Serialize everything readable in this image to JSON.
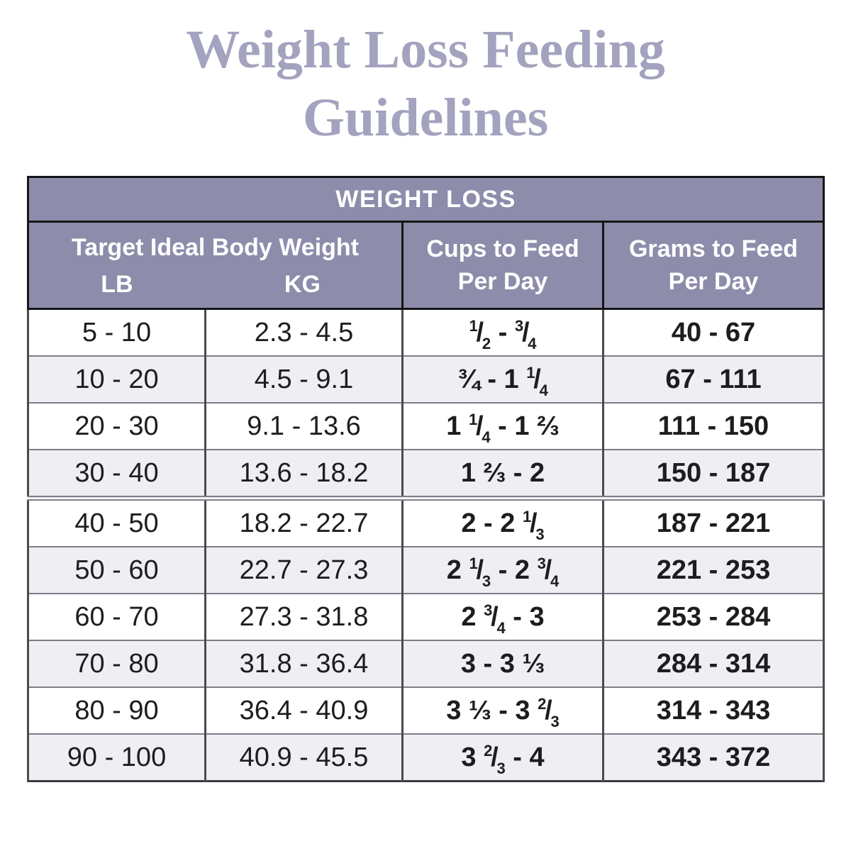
{
  "page": {
    "title_lines": [
      "Weight Loss Feeding",
      "Guidelines"
    ]
  },
  "table": {
    "band_header": "WEIGHT LOSS",
    "group_header": "Target Ideal Body Weight",
    "sub_headers": [
      "LB",
      "KG"
    ],
    "cups_header": [
      "Cups to Feed",
      "Per Day"
    ],
    "grams_header": [
      "Grams to Feed",
      "Per Day"
    ],
    "rows": [
      {
        "lb": "5 - 10",
        "kg": "2.3 - 4.5",
        "cups": "[1/2] - [3/4]",
        "grams": "40 - 67"
      },
      {
        "lb": "10 - 20",
        "kg": "4.5 - 9.1",
        "cups": "¾ - 1 [1/4]",
        "grams": "67 - 111"
      },
      {
        "lb": "20 - 30",
        "kg": "9.1 - 13.6",
        "cups": "1 [1/4] - 1 ⅔",
        "grams": "111 - 150"
      },
      {
        "lb": "30 - 40",
        "kg": "13.6 - 18.2",
        "cups": "1 ⅔ - 2",
        "grams": "150 - 187"
      },
      {
        "lb": "40 - 50",
        "kg": "18.2 - 22.7",
        "cups": "2 - 2 [1/3]",
        "grams": "187 - 221"
      },
      {
        "lb": "50 - 60",
        "kg": "22.7 - 27.3",
        "cups": "2 [1/3] - 2 [3/4]",
        "grams": "221 - 253"
      },
      {
        "lb": "60 - 70",
        "kg": "27.3 - 31.8",
        "cups": "2 [3/4] - 3",
        "grams": "253 - 284"
      },
      {
        "lb": "70 - 80",
        "kg": "31.8 - 36.4",
        "cups": "3 - 3 ⅓",
        "grams": "284 - 314"
      },
      {
        "lb": "80 - 90",
        "kg": "36.4 - 40.9",
        "cups": "3 ⅓ - 3 [2/3]",
        "grams": "314 - 343"
      },
      {
        "lb": "90 - 100",
        "kg": "40.9 - 45.5",
        "cups": "3 [2/3] - 4",
        "grams": "343 - 372"
      }
    ],
    "colors": {
      "title_color": "#a3a3bf",
      "header_bg": "#8d8cab",
      "header_text": "#ffffff",
      "row_bg": "#ffffff",
      "row_alt_bg": "#efeef3",
      "border_dark": "#161616",
      "border_row": "#7d7d85",
      "text_color": "#1d1d1f"
    }
  }
}
